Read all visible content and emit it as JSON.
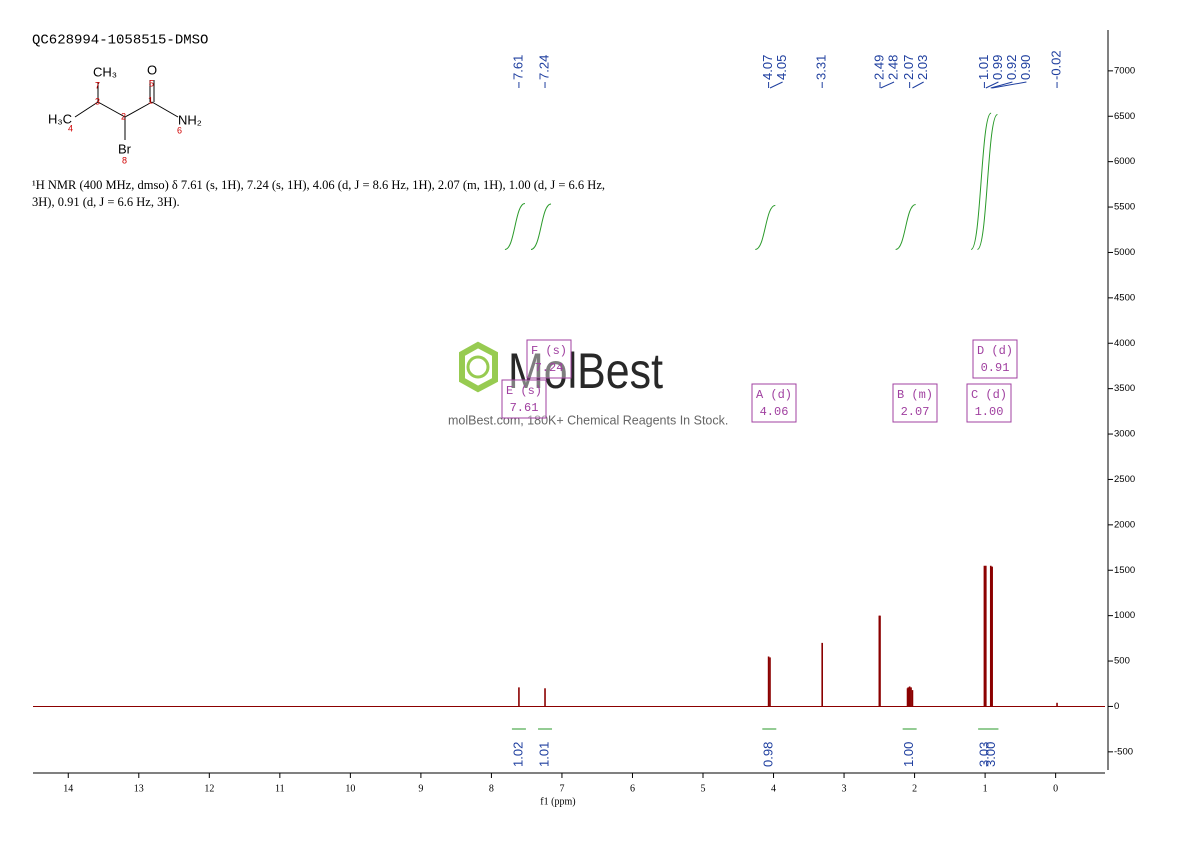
{
  "header": {
    "title": "QC628994-1058515-DMSO"
  },
  "description": "¹H NMR (400 MHz, dmso) δ 7.61 (s, 1H), 7.24 (s, 1H), 4.06 (d, J = 8.6 Hz, 1H), 2.07 (m, 1H), 1.00 (d, J = 6.6 Hz, 3H), 0.91 (d, J = 6.6 Hz, 3H).",
  "structure": {
    "atoms": [
      "CH₃",
      "O",
      "H₃C",
      "NH₂",
      "Br"
    ],
    "numbers": [
      "1",
      "2",
      "3",
      "4",
      "5",
      "6",
      "7",
      "8"
    ]
  },
  "watermark": {
    "brand": "MolBest",
    "tagline": "molBest.com, 180K+ Chemical Reagents In Stock."
  },
  "chart_data": {
    "type": "nmr",
    "x_label": "f1 (ppm)",
    "xlim": [
      14.5,
      -0.7
    ],
    "xticks": [
      14,
      13,
      12,
      11,
      10,
      9,
      8,
      7,
      6,
      5,
      4,
      3,
      2,
      1,
      0
    ],
    "ylim": [
      -700,
      7450
    ],
    "yticks": [
      -500,
      0,
      500,
      1000,
      1500,
      2000,
      2500,
      3000,
      3500,
      4000,
      4500,
      5000,
      5500,
      6000,
      6500,
      7000
    ],
    "color": "#8b0000",
    "x": [
      7.61,
      7.24,
      4.07,
      4.05,
      3.31,
      2.5,
      2.49,
      2.1,
      2.09,
      2.07,
      2.05,
      2.03,
      1.01,
      0.99,
      0.92,
      0.9,
      -0.02
    ],
    "values": [
      210,
      200,
      550,
      540,
      700,
      1000,
      1000,
      200,
      210,
      220,
      210,
      180,
      1550,
      1550,
      1550,
      1540,
      40
    ],
    "peak_labels": [
      7.61,
      7.24,
      4.07,
      4.05,
      3.31,
      2.49,
      2.48,
      2.07,
      2.03,
      1.01,
      0.99,
      0.92,
      {
        "value": 0.9,
        "label": "0.90"
      },
      -0.02
    ],
    "integrals": {
      "x": [
        7.61,
        7.24,
        4.06,
        2.07,
        1.0,
        0.91
      ],
      "values": [
        1.02,
        1.01,
        0.98,
        1,
        3.03,
        3
      ],
      "value_labels": [
        "1.02",
        "1.01",
        "0.98",
        "1.00",
        "3.03",
        "3.00"
      ]
    },
    "multiplets": [
      {
        "label": "E (s)",
        "shift": "7.61"
      },
      {
        "label": "F (s)",
        "shift": "7.24"
      },
      {
        "label": "A (d)",
        "shift": "4.06"
      },
      {
        "label": "B (m)",
        "shift": "2.07"
      },
      {
        "label": "C (d)",
        "shift": "1.00"
      },
      {
        "label": "D (d)",
        "shift": "0.91"
      }
    ]
  }
}
